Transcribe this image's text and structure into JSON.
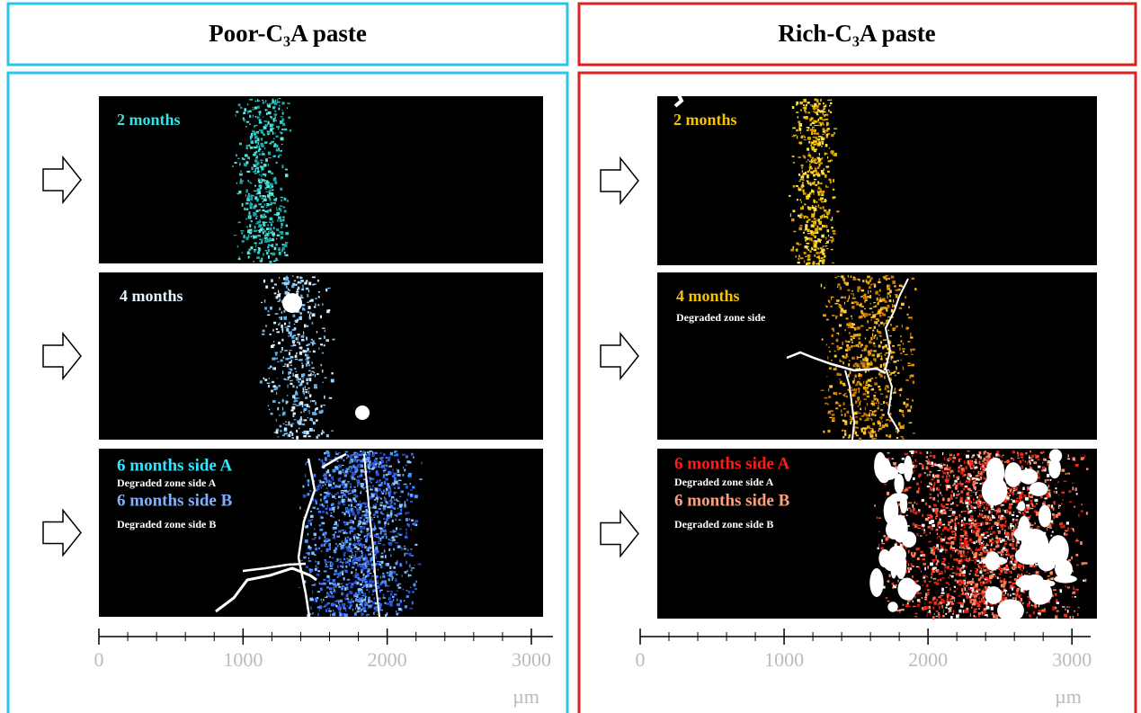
{
  "panels": [
    {
      "title": "Poor-C₃A paste",
      "rows": [
        {
          "labels": [
            "2 months"
          ]
        },
        {
          "labels": [
            "4 months"
          ]
        },
        {
          "labels": [
            "6 months side A",
            "Degraded zone side A",
            "6 months side B",
            "Degraded zone side B"
          ]
        }
      ],
      "axis": {
        "xlim": [
          0,
          3150
        ],
        "xticks": [
          0,
          1000,
          2000,
          3000
        ],
        "unit": "µm"
      }
    },
    {
      "title": "Rich-C₃A paste",
      "rows": [
        {
          "labels": [
            "2 months"
          ]
        },
        {
          "labels": [
            "4 months",
            "Degraded zone side"
          ]
        },
        {
          "labels": [
            "6 months side A",
            "Degraded zone side A",
            "6 months side B",
            "Degraded zone side B"
          ]
        }
      ],
      "axis": {
        "xlim": [
          0,
          3130
        ],
        "xticks": [
          0,
          1000,
          2000,
          3000
        ],
        "unit": "µm"
      }
    }
  ]
}
